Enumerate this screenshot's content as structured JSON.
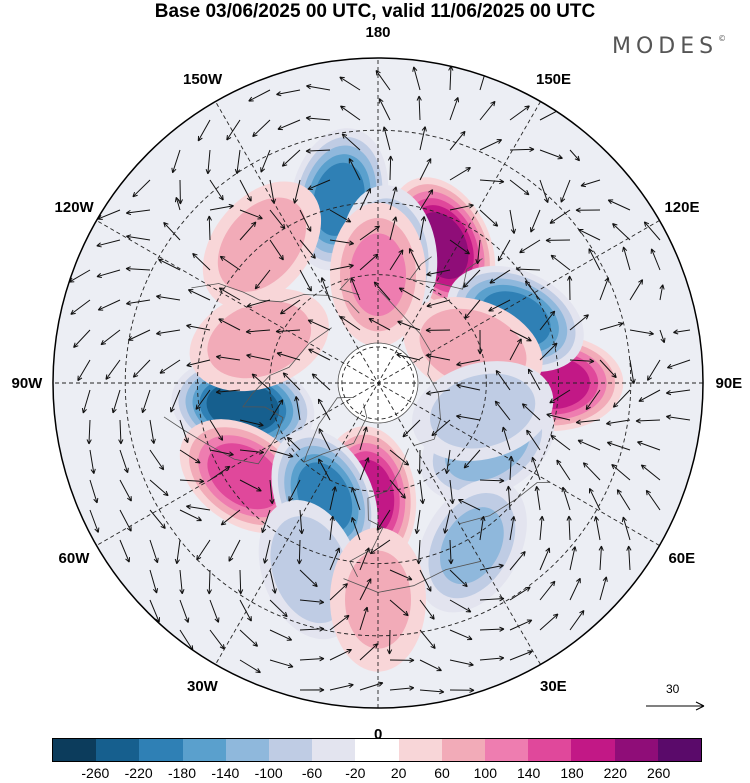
{
  "title": "Base 03/06/2025 00 UTC, valid 11/06/2025 00 UTC",
  "brand": {
    "text": "MODES",
    "mark": "©"
  },
  "longitude_labels": [
    "180",
    "150E",
    "120E",
    "90E",
    "60E",
    "30E",
    "0",
    "30W",
    "60W",
    "90W",
    "120W",
    "150W"
  ],
  "reference_vector": {
    "value": "30"
  },
  "colorbar": {
    "colors": [
      "#0c3c5c",
      "#165f8e",
      "#2f80b5",
      "#5aa0cd",
      "#8fb8dc",
      "#bfcce4",
      "#e3e4ef",
      "#ffffff",
      "#f8d6d8",
      "#f2abb8",
      "#ee7db0",
      "#e0489b",
      "#c21886",
      "#8f0d78",
      "#5a0a6a"
    ],
    "tick_labels": [
      "-260",
      "-220",
      "-180",
      "-140",
      "-100",
      "-60",
      "-20",
      "20",
      "60",
      "100",
      "140",
      "180",
      "220",
      "260"
    ]
  },
  "anomaly_centers": [
    {
      "lat": 48,
      "lon": 155,
      "value": 230
    },
    {
      "lat": 42,
      "lon": 90,
      "value": 200
    },
    {
      "lat": 52,
      "lon": -80,
      "value": -240
    },
    {
      "lat": 45,
      "lon": -55,
      "value": 160
    },
    {
      "lat": 58,
      "lon": -5,
      "value": 200
    },
    {
      "lat": 55,
      "lon": -25,
      "value": -190
    },
    {
      "lat": 48,
      "lon": 115,
      "value": -190
    },
    {
      "lat": 55,
      "lon": 60,
      "value": -120
    },
    {
      "lat": 38,
      "lon": -168,
      "value": -190
    },
    {
      "lat": 55,
      "lon": 175,
      "value": -120
    },
    {
      "lat": 60,
      "lon": -180,
      "value": 100
    },
    {
      "lat": 62,
      "lon": 110,
      "value": 90
    },
    {
      "lat": 60,
      "lon": 75,
      "value": -80
    },
    {
      "lat": 55,
      "lon": -110,
      "value": 80
    },
    {
      "lat": 40,
      "lon": -140,
      "value": 80
    },
    {
      "lat": 35,
      "lon": -20,
      "value": -90
    },
    {
      "lat": 38,
      "lon": 30,
      "value": -100
    },
    {
      "lat": 30,
      "lon": 0,
      "value": 60
    }
  ]
}
